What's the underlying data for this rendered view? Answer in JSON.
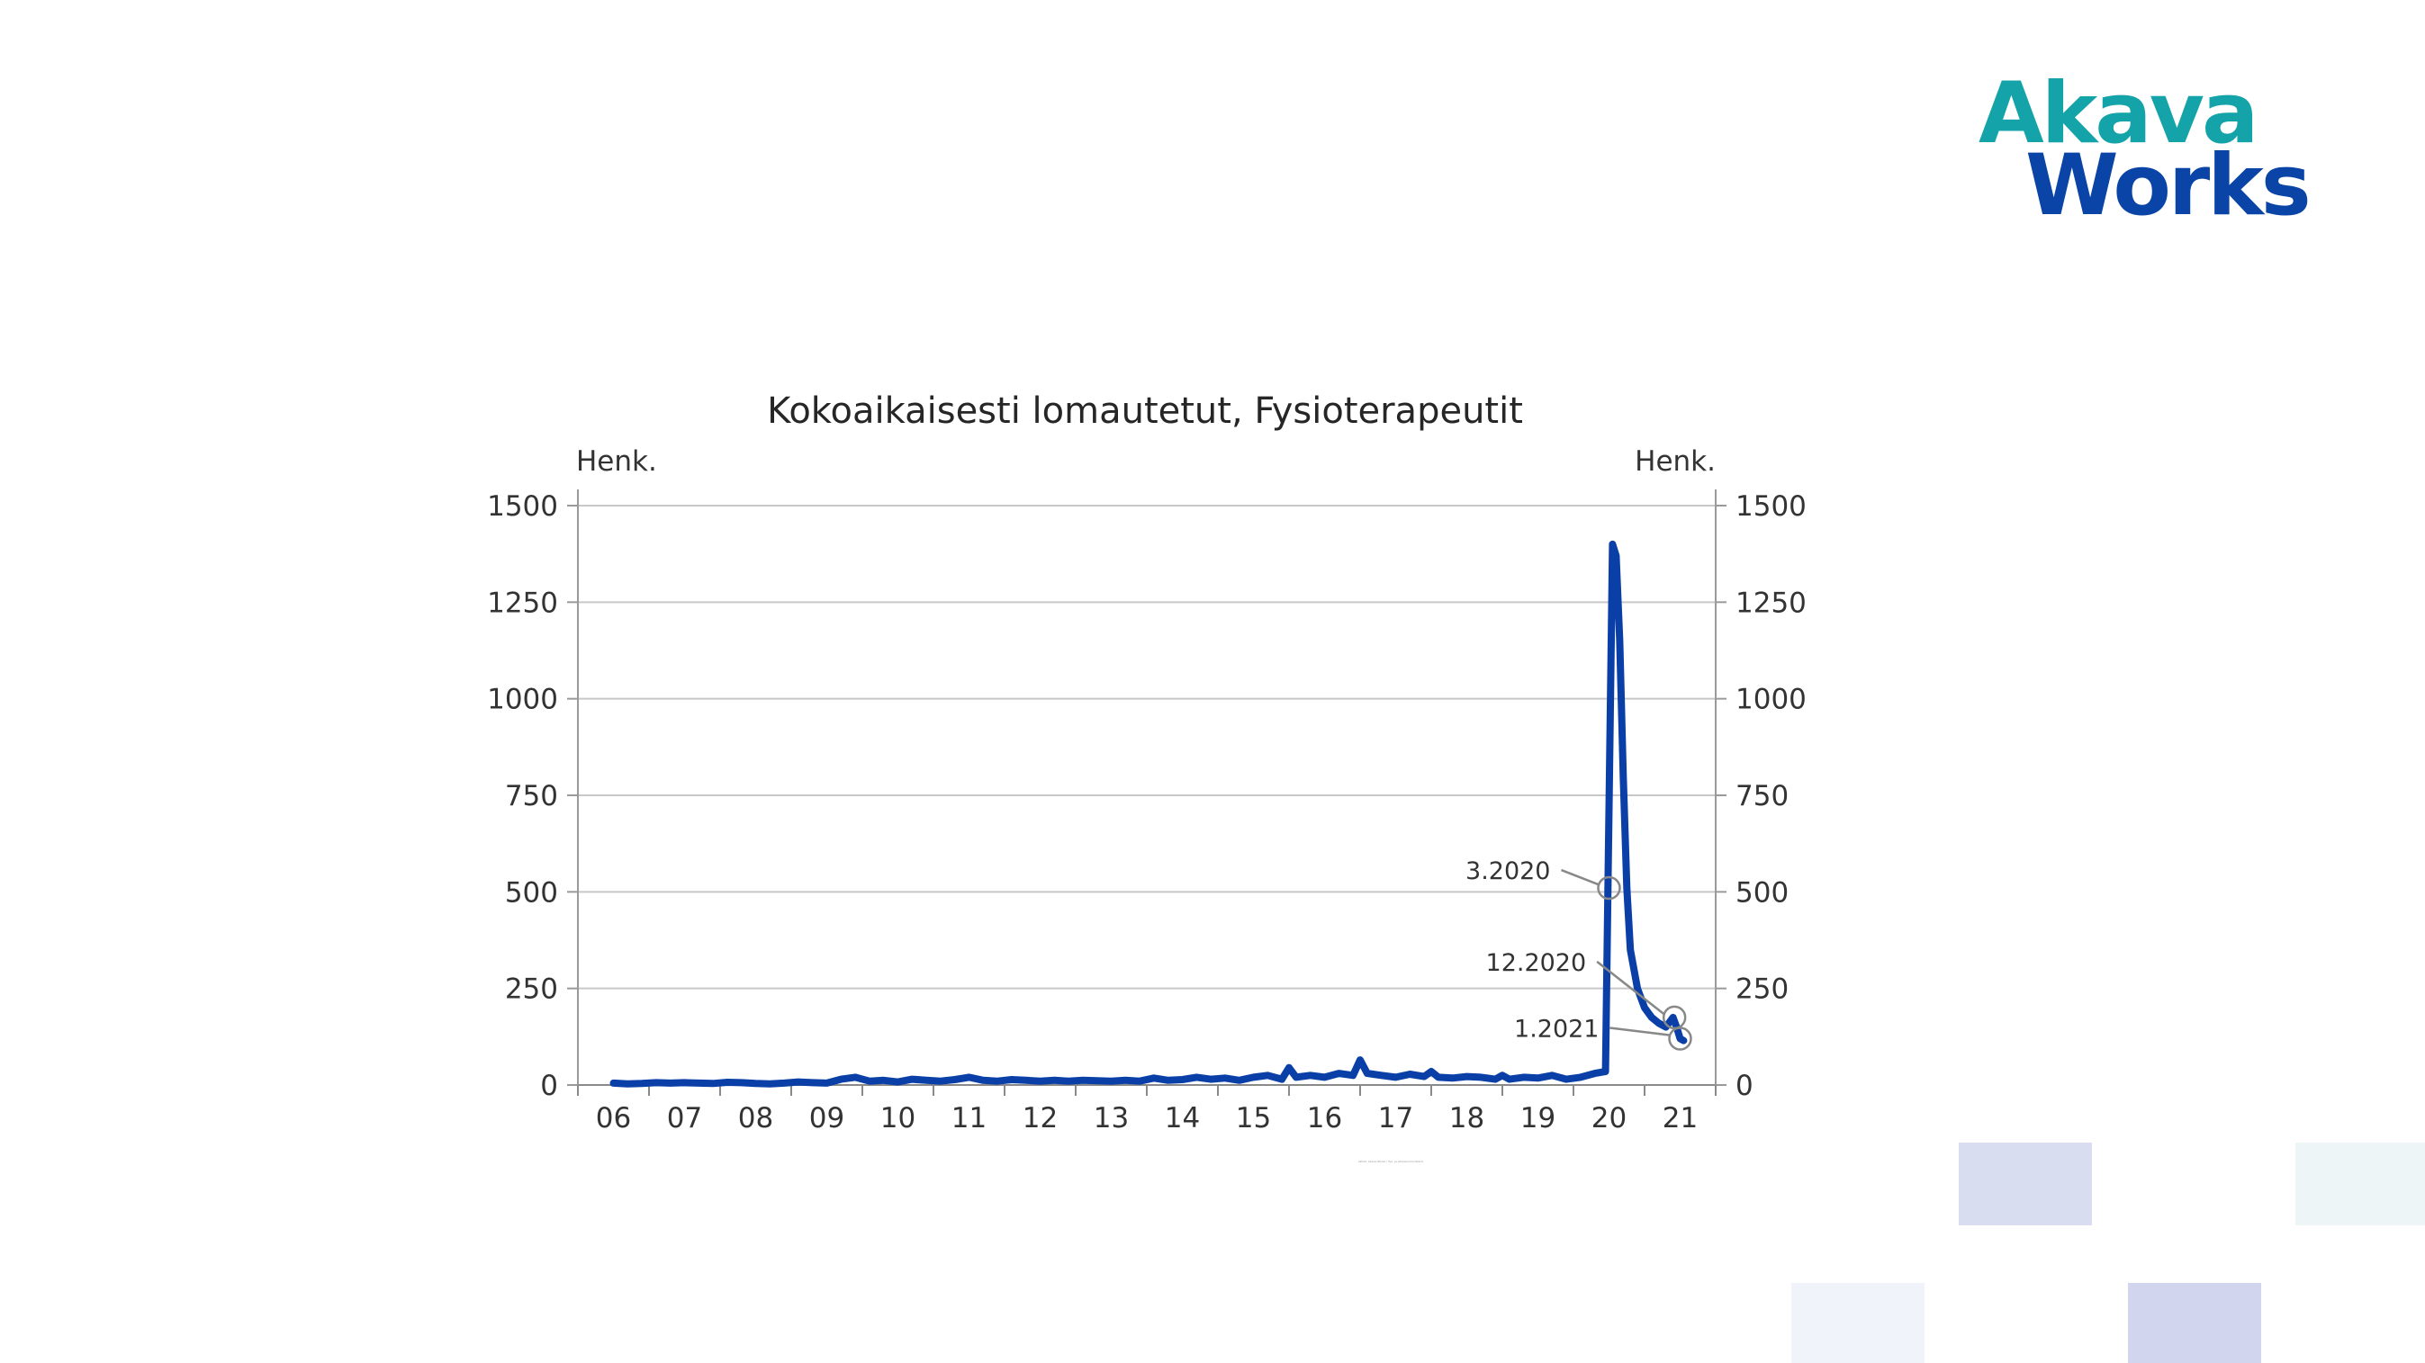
{
  "logo": {
    "line1": "Akava",
    "line2": "Works",
    "colors": {
      "line1": "#13a3a8",
      "line2": "#0a44a6"
    }
  },
  "chart_data": {
    "type": "line",
    "title": "Kokoaikaisesti lomautetut, Fysioterapeutit",
    "ylabel_left": "Henk.",
    "ylabel_right": "Henk.",
    "ylim": [
      0,
      1500
    ],
    "yticks": [
      "0",
      "250",
      "500",
      "750",
      "1000",
      "1250",
      "1500"
    ],
    "xticks": [
      "06",
      "07",
      "08",
      "09",
      "10",
      "11",
      "12",
      "13",
      "14",
      "15",
      "16",
      "17",
      "18",
      "19",
      "20",
      "21"
    ],
    "grid": true,
    "line_color": "#0a3fa8",
    "series": [
      {
        "x": [
          2006.0,
          2006.2,
          2006.4,
          2006.6,
          2006.8,
          2007.0,
          2007.2,
          2007.4,
          2007.6,
          2007.8,
          2008.0,
          2008.2,
          2008.4,
          2008.6,
          2008.8,
          2009.0,
          2009.2,
          2009.4,
          2009.6,
          2009.8,
          2010.0,
          2010.2,
          2010.4,
          2010.6,
          2010.8,
          2011.0,
          2011.2,
          2011.4,
          2011.6,
          2011.8,
          2012.0,
          2012.2,
          2012.4,
          2012.6,
          2012.8,
          2013.0,
          2013.2,
          2013.4,
          2013.6,
          2013.8,
          2014.0,
          2014.2,
          2014.4,
          2014.6,
          2014.8,
          2015.0,
          2015.2,
          2015.4,
          2015.5,
          2015.6,
          2015.8,
          2016.0,
          2016.2,
          2016.4,
          2016.5,
          2016.6,
          2016.8,
          2017.0,
          2017.2,
          2017.4,
          2017.5,
          2017.6,
          2017.8,
          2018.0,
          2018.2,
          2018.4,
          2018.5,
          2018.6,
          2018.8,
          2019.0,
          2019.2,
          2019.4,
          2019.6,
          2019.8,
          2019.95,
          2020.05,
          2020.1,
          2020.15,
          2020.2,
          2020.25,
          2020.3,
          2020.4,
          2020.5,
          2020.6,
          2020.7,
          2020.8,
          2020.9,
          2020.95,
          2021.0,
          2021.05
        ],
        "values": [
          5,
          3,
          4,
          6,
          5,
          6,
          5,
          4,
          7,
          6,
          4,
          3,
          5,
          8,
          6,
          5,
          15,
          20,
          10,
          12,
          8,
          15,
          12,
          10,
          14,
          20,
          12,
          10,
          14,
          12,
          10,
          12,
          10,
          12,
          11,
          10,
          12,
          10,
          18,
          12,
          14,
          20,
          15,
          18,
          12,
          20,
          25,
          15,
          45,
          20,
          25,
          20,
          30,
          25,
          65,
          30,
          25,
          20,
          28,
          22,
          35,
          20,
          18,
          22,
          20,
          15,
          25,
          15,
          20,
          18,
          25,
          15,
          20,
          30,
          35,
          1400,
          1370,
          1150,
          800,
          510,
          350,
          250,
          200,
          175,
          160,
          150,
          175,
          150,
          120,
          115
        ]
      }
    ],
    "annotations": [
      {
        "label": "3.2020",
        "x": 2020.0,
        "y": 510
      },
      {
        "label": "12.2020",
        "x": 2020.92,
        "y": 175
      },
      {
        "label": "1.2021",
        "x": 2021.0,
        "y": 120
      }
    ],
    "footnote": "Lähde: Akava Works / Työ- ja elinkeinoministeriö"
  },
  "deco_colors": [
    "#d8ddf0",
    "#eef5f7",
    "#f1f3fb",
    "#d1d6ee"
  ]
}
